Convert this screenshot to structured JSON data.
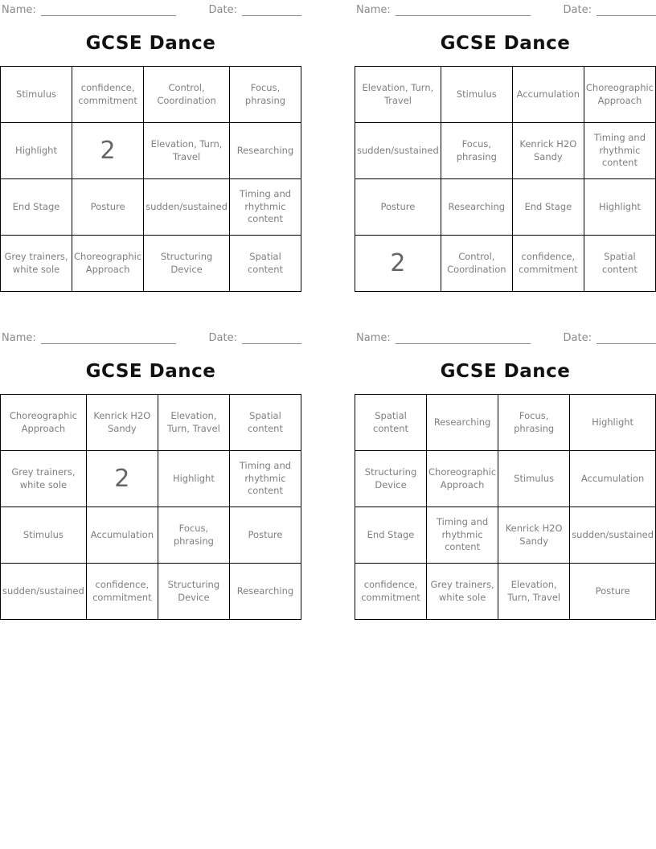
{
  "labels": {
    "name": "Name:",
    "date": "Date:"
  },
  "title": "GCSE Dance",
  "colors": {
    "border": "#000000",
    "title_text": "#111111",
    "header_label": "#8a8a8a",
    "cell_text": "#7f7f7f",
    "free_square_text": "#666666",
    "blank_line": "#8a8a8a",
    "background": "#ffffff"
  },
  "cards": [
    {
      "free_index": 5,
      "cells": [
        "Stimulus",
        "confidence, commitment",
        "Control, Coordination",
        "Focus, phrasing",
        "Highlight",
        "2",
        "Elevation, Turn, Travel",
        "Researching",
        "End Stage",
        "Posture",
        "sudden/sustained",
        "Timing and rhythmic content",
        "Grey trainers, white sole",
        "Choreographic Approach",
        "Structuring Device",
        "Spatial content"
      ]
    },
    {
      "free_index": 12,
      "cells": [
        "Elevation, Turn, Travel",
        "Stimulus",
        "Accumulation",
        "Choreographic Approach",
        "sudden/sustained",
        "Focus, phrasing",
        "Kenrick H2O Sandy",
        "Timing and rhythmic content",
        "Posture",
        "Researching",
        "End Stage",
        "Highlight",
        "2",
        "Control, Coordination",
        "confidence, commitment",
        "Spatial content"
      ]
    },
    {
      "free_index": 5,
      "cells": [
        "Choreographic Approach",
        "Kenrick H2O Sandy",
        "Elevation, Turn, Travel",
        "Spatial content",
        "Grey trainers, white sole",
        "2",
        "Highlight",
        "Timing and rhythmic content",
        "Stimulus",
        "Accumulation",
        "Focus, phrasing",
        "Posture",
        "sudden/sustained",
        "confidence, commitment",
        "Structuring Device",
        "Researching"
      ]
    },
    {
      "free_index": -1,
      "cells": [
        "Spatial content",
        "Researching",
        "Focus, phrasing",
        "Highlight",
        "Structuring Device",
        "Choreographic Approach",
        "Stimulus",
        "Accumulation",
        "End Stage",
        "Timing and rhythmic content",
        "Kenrick H2O Sandy",
        "sudden/sustained",
        "confidence, commitment",
        "Grey trainers, white sole",
        "Elevation, Turn, Travel",
        "Posture"
      ]
    }
  ]
}
